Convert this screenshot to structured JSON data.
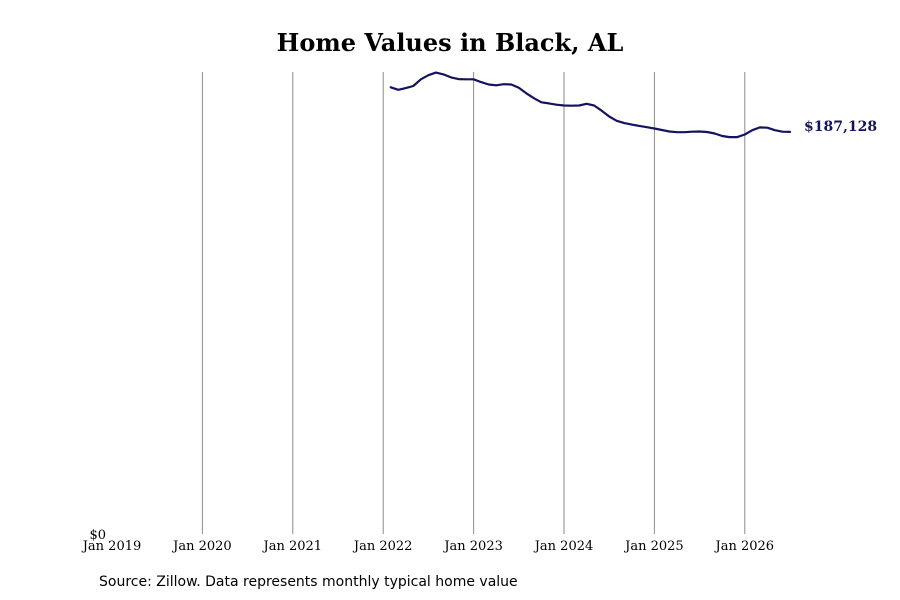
{
  "chart_data": {
    "type": "line",
    "title": "Home Values in Black, AL",
    "xlabel": "",
    "ylabel": "",
    "x_ticks": [
      "Jan 2019",
      "Jan 2020",
      "Jan 2021",
      "Jan 2022",
      "Jan 2023",
      "Jan 2024",
      "Jan 2025",
      "Jan 2026"
    ],
    "y_ticks": [
      "$0"
    ],
    "ylim": [
      0,
      215000
    ],
    "xlim": [
      "2019-01",
      "2026-07"
    ],
    "grid": "vertical",
    "line_color": "#14145e",
    "end_label": "$187,128",
    "series": [
      {
        "x": [
          "2022-02",
          "2022-03",
          "2022-04",
          "2022-05",
          "2022-06",
          "2022-07",
          "2022-08",
          "2022-09",
          "2022-10",
          "2022-11",
          "2022-12",
          "2023-01",
          "2023-02",
          "2023-03",
          "2023-04",
          "2023-05",
          "2023-06",
          "2023-07",
          "2023-08",
          "2023-09",
          "2023-10",
          "2023-11",
          "2023-12",
          "2024-01",
          "2024-02",
          "2024-03",
          "2024-04",
          "2024-05",
          "2024-06",
          "2024-07",
          "2024-08",
          "2024-09",
          "2024-10",
          "2024-11",
          "2024-12",
          "2025-01",
          "2025-02",
          "2025-03",
          "2025-04",
          "2025-05",
          "2025-06",
          "2025-07",
          "2025-08",
          "2025-09",
          "2025-10",
          "2025-11",
          "2025-12",
          "2026-01",
          "2026-02",
          "2026-03",
          "2026-04",
          "2026-05",
          "2026-06",
          "2026-07"
        ],
        "values": [
          207900,
          206700,
          207500,
          208500,
          211600,
          213500,
          214700,
          213900,
          212500,
          211700,
          211600,
          211600,
          210300,
          209200,
          208800,
          209300,
          209200,
          207700,
          205100,
          202800,
          200900,
          200400,
          199800,
          199400,
          199300,
          199400,
          200200,
          199400,
          197000,
          194300,
          192300,
          191200,
          190500,
          189900,
          189300,
          188700,
          188000,
          187300,
          187000,
          187000,
          187200,
          187300,
          187100,
          186400,
          185200,
          184700,
          184700,
          185900,
          187900,
          189200,
          189100,
          187900,
          187200,
          187128
        ]
      }
    ],
    "source": "Source: Zillow. Data represents monthly typical home value"
  }
}
